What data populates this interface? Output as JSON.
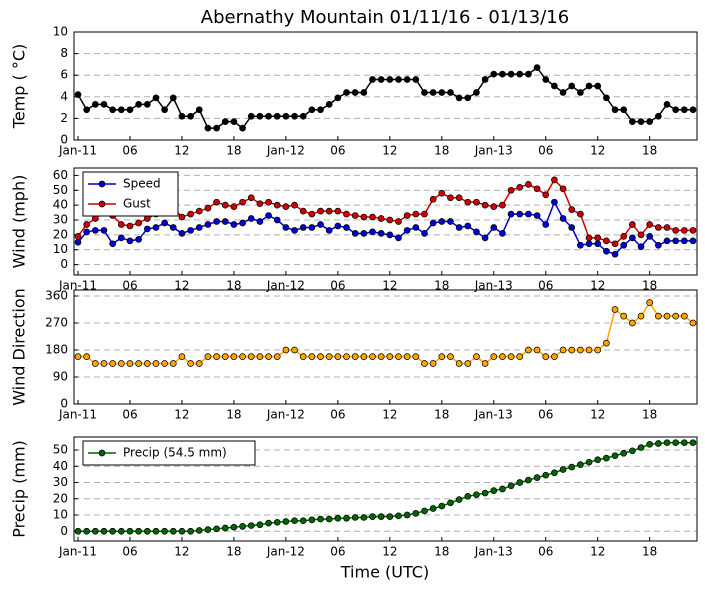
{
  "title": "Abernathy Mountain 01/11/16 - 01/13/16",
  "xlabel": "Time (UTC)",
  "chart_data": [
    {
      "type": "line",
      "ylabel": "Temp ( °C)",
      "ylim": [
        0,
        10
      ],
      "yticks": [
        0,
        2,
        4,
        6,
        8,
        10
      ],
      "grid": true,
      "categories": [
        "Jan-11",
        null,
        null,
        null,
        null,
        null,
        "06",
        null,
        null,
        null,
        null,
        null,
        "12",
        null,
        null,
        null,
        null,
        null,
        "18",
        null,
        null,
        null,
        null,
        null,
        "Jan-12",
        null,
        null,
        null,
        null,
        null,
        "06",
        null,
        null,
        null,
        null,
        null,
        "12",
        null,
        null,
        null,
        null,
        null,
        "18",
        null,
        null,
        null,
        null,
        null,
        "Jan-13",
        null,
        null,
        null,
        null,
        null,
        "06",
        null,
        null,
        null,
        null,
        null,
        "12",
        null,
        null,
        null,
        null,
        null,
        "18",
        null,
        null,
        null,
        null,
        null
      ],
      "series": [
        {
          "color": "#000000",
          "values": [
            4.2,
            2.8,
            3.3,
            3.3,
            2.8,
            2.8,
            2.8,
            3.3,
            3.3,
            3.9,
            2.8,
            3.9,
            2.2,
            2.2,
            2.8,
            1.1,
            1.1,
            1.7,
            1.7,
            1.1,
            2.2,
            2.2,
            2.2,
            2.2,
            2.2,
            2.2,
            2.2,
            2.8,
            2.8,
            3.3,
            3.9,
            4.4,
            4.4,
            4.4,
            5.6,
            5.6,
            5.6,
            5.6,
            5.6,
            5.6,
            4.4,
            4.4,
            4.4,
            4.4,
            3.9,
            3.9,
            4.4,
            5.6,
            6.1,
            6.1,
            6.1,
            6.1,
            6.1,
            6.7,
            5.6,
            5.0,
            4.4,
            5.0,
            4.4,
            5.0,
            5.0,
            3.9,
            2.8,
            2.8,
            1.7,
            1.7,
            1.7,
            2.2,
            3.3,
            2.8,
            2.8,
            2.8
          ]
        }
      ]
    },
    {
      "type": "line",
      "ylabel": "Wind (mph)",
      "ylim": [
        -7,
        65
      ],
      "yticks": [
        0,
        10,
        20,
        30,
        40,
        50,
        60
      ],
      "grid": true,
      "legend": "upper left",
      "categories": [
        "Jan-11",
        null,
        null,
        null,
        null,
        null,
        "06",
        null,
        null,
        null,
        null,
        null,
        "12",
        null,
        null,
        null,
        null,
        null,
        "18",
        null,
        null,
        null,
        null,
        null,
        "Jan-12",
        null,
        null,
        null,
        null,
        null,
        "06",
        null,
        null,
        null,
        null,
        null,
        "12",
        null,
        null,
        null,
        null,
        null,
        "18",
        null,
        null,
        null,
        null,
        null,
        "Jan-13",
        null,
        null,
        null,
        null,
        null,
        "06",
        null,
        null,
        null,
        null,
        null,
        "12",
        null,
        null,
        null,
        null,
        null,
        "18",
        null,
        null,
        null,
        null,
        null
      ],
      "series": [
        {
          "name": "Speed",
          "color": "#0000cc",
          "values": [
            15,
            22,
            23,
            23,
            14,
            18,
            16,
            17,
            24,
            25,
            28,
            25,
            21,
            23,
            25,
            27,
            29,
            29,
            27,
            28,
            31,
            29,
            33,
            30,
            25,
            23,
            25,
            25,
            27,
            23,
            26,
            25,
            21,
            21,
            22,
            21,
            20,
            18,
            23,
            25,
            21,
            28,
            29,
            29,
            25,
            26,
            22,
            18,
            25,
            21,
            34,
            34,
            34,
            33,
            27,
            42,
            31,
            25,
            13,
            14,
            14,
            9,
            7,
            13,
            18,
            12,
            19,
            13,
            16,
            16,
            16,
            16
          ]
        },
        {
          "name": "Gust",
          "color": "#cc0000",
          "values": [
            19,
            27,
            31,
            35,
            33,
            27,
            26,
            28,
            31,
            34,
            36,
            38,
            32,
            34,
            36,
            38,
            42,
            40,
            39,
            42,
            45,
            41,
            42,
            40,
            39,
            40,
            36,
            34,
            36,
            36,
            36,
            34,
            33,
            32,
            32,
            31,
            30,
            29,
            33,
            34,
            34,
            44,
            48,
            45,
            45,
            42,
            42,
            40,
            39,
            40,
            50,
            52,
            54,
            51,
            47,
            57,
            51,
            37,
            34,
            18,
            18,
            16,
            14,
            19,
            27,
            20,
            27,
            25,
            25,
            23,
            23,
            23
          ]
        }
      ]
    },
    {
      "type": "line",
      "ylabel": "Wind Direction",
      "ylim": [
        0,
        380
      ],
      "yticks": [
        0,
        90,
        180,
        270,
        360
      ],
      "grid": true,
      "categories": [
        "Jan-11",
        null,
        null,
        null,
        null,
        null,
        "06",
        null,
        null,
        null,
        null,
        null,
        "12",
        null,
        null,
        null,
        null,
        null,
        "18",
        null,
        null,
        null,
        null,
        null,
        "Jan-12",
        null,
        null,
        null,
        null,
        null,
        "06",
        null,
        null,
        null,
        null,
        null,
        "12",
        null,
        null,
        null,
        null,
        null,
        "18",
        null,
        null,
        null,
        null,
        null,
        "Jan-13",
        null,
        null,
        null,
        null,
        null,
        "06",
        null,
        null,
        null,
        null,
        null,
        "12",
        null,
        null,
        null,
        null,
        null,
        "18",
        null,
        null,
        null,
        null,
        null
      ],
      "series": [
        {
          "color": "#ffa500",
          "values": [
            158,
            158,
            135,
            135,
            135,
            135,
            135,
            135,
            135,
            135,
            135,
            135,
            158,
            135,
            135,
            158,
            158,
            158,
            158,
            158,
            158,
            158,
            158,
            158,
            180,
            180,
            158,
            158,
            158,
            158,
            158,
            158,
            158,
            158,
            158,
            158,
            158,
            158,
            158,
            158,
            135,
            135,
            158,
            158,
            135,
            135,
            158,
            135,
            158,
            158,
            158,
            158,
            180,
            180,
            158,
            158,
            180,
            180,
            180,
            180,
            180,
            203,
            315,
            293,
            270,
            293,
            338,
            293,
            293,
            293,
            293,
            270
          ]
        }
      ]
    },
    {
      "type": "line",
      "ylabel": "Precip (mm)",
      "ylim": [
        -6,
        58
      ],
      "yticks": [
        0,
        10,
        20,
        30,
        40,
        50
      ],
      "grid": true,
      "legend": "upper left",
      "categories": [
        "Jan-11",
        null,
        null,
        null,
        null,
        null,
        "06",
        null,
        null,
        null,
        null,
        null,
        "12",
        null,
        null,
        null,
        null,
        null,
        "18",
        null,
        null,
        null,
        null,
        null,
        "Jan-12",
        null,
        null,
        null,
        null,
        null,
        "06",
        null,
        null,
        null,
        null,
        null,
        "12",
        null,
        null,
        null,
        null,
        null,
        "18",
        null,
        null,
        null,
        null,
        null,
        "Jan-13",
        null,
        null,
        null,
        null,
        null,
        "06",
        null,
        null,
        null,
        null,
        null,
        "12",
        null,
        null,
        null,
        null,
        null,
        "18",
        null,
        null,
        null,
        null,
        null
      ],
      "series": [
        {
          "name": "Precip (54.5 mm)",
          "color": "#006400",
          "values": [
            0,
            0,
            0,
            0,
            0,
            0,
            0,
            0,
            0,
            0,
            0,
            0,
            0,
            0,
            0.5,
            1,
            1.5,
            2,
            2.5,
            3,
            3.5,
            4,
            5,
            5.5,
            6,
            6.5,
            6.5,
            7,
            7.5,
            7.5,
            8,
            8,
            8.5,
            8.5,
            9,
            9,
            9,
            9.5,
            10,
            11,
            12.5,
            14,
            15.5,
            17.5,
            19.5,
            21.5,
            22.5,
            23.5,
            25,
            26,
            28,
            30,
            31.5,
            33,
            34.5,
            36,
            38,
            39.5,
            41,
            42.5,
            44,
            45,
            46.5,
            48,
            49.5,
            51.5,
            53.5,
            54,
            54.5,
            54.5,
            54.5,
            54.5
          ]
        }
      ]
    }
  ]
}
